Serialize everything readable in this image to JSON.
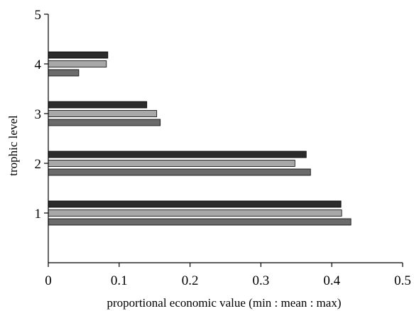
{
  "chart_data": {
    "type": "bar",
    "orientation": "horizontal",
    "title": "",
    "xlabel": "proportional economic value (min : mean : max)",
    "ylabel": "trophic level",
    "xlim": [
      0,
      0.5
    ],
    "ylim": [
      0,
      5
    ],
    "x_ticks": [
      0,
      0.1,
      0.2,
      0.3,
      0.4,
      0.5
    ],
    "x_tick_labels": [
      "0",
      "0.1",
      "0.2",
      "0.3",
      "0.4",
      "0.5"
    ],
    "y_ticks": [
      1,
      2,
      3,
      4,
      5
    ],
    "y_tick_labels": [
      "1",
      "2",
      "3",
      "4",
      "5"
    ],
    "grid": false,
    "categories": [
      1,
      2,
      3,
      4
    ],
    "series": [
      {
        "color": "#2b2b2b",
        "values": [
          0.413,
          0.364,
          0.139,
          0.084
        ]
      },
      {
        "color": "#a8a8a8",
        "values": [
          0.414,
          0.348,
          0.153,
          0.082
        ]
      },
      {
        "color": "#6b6b6b",
        "values": [
          0.427,
          0.37,
          0.158,
          0.043
        ]
      }
    ]
  }
}
